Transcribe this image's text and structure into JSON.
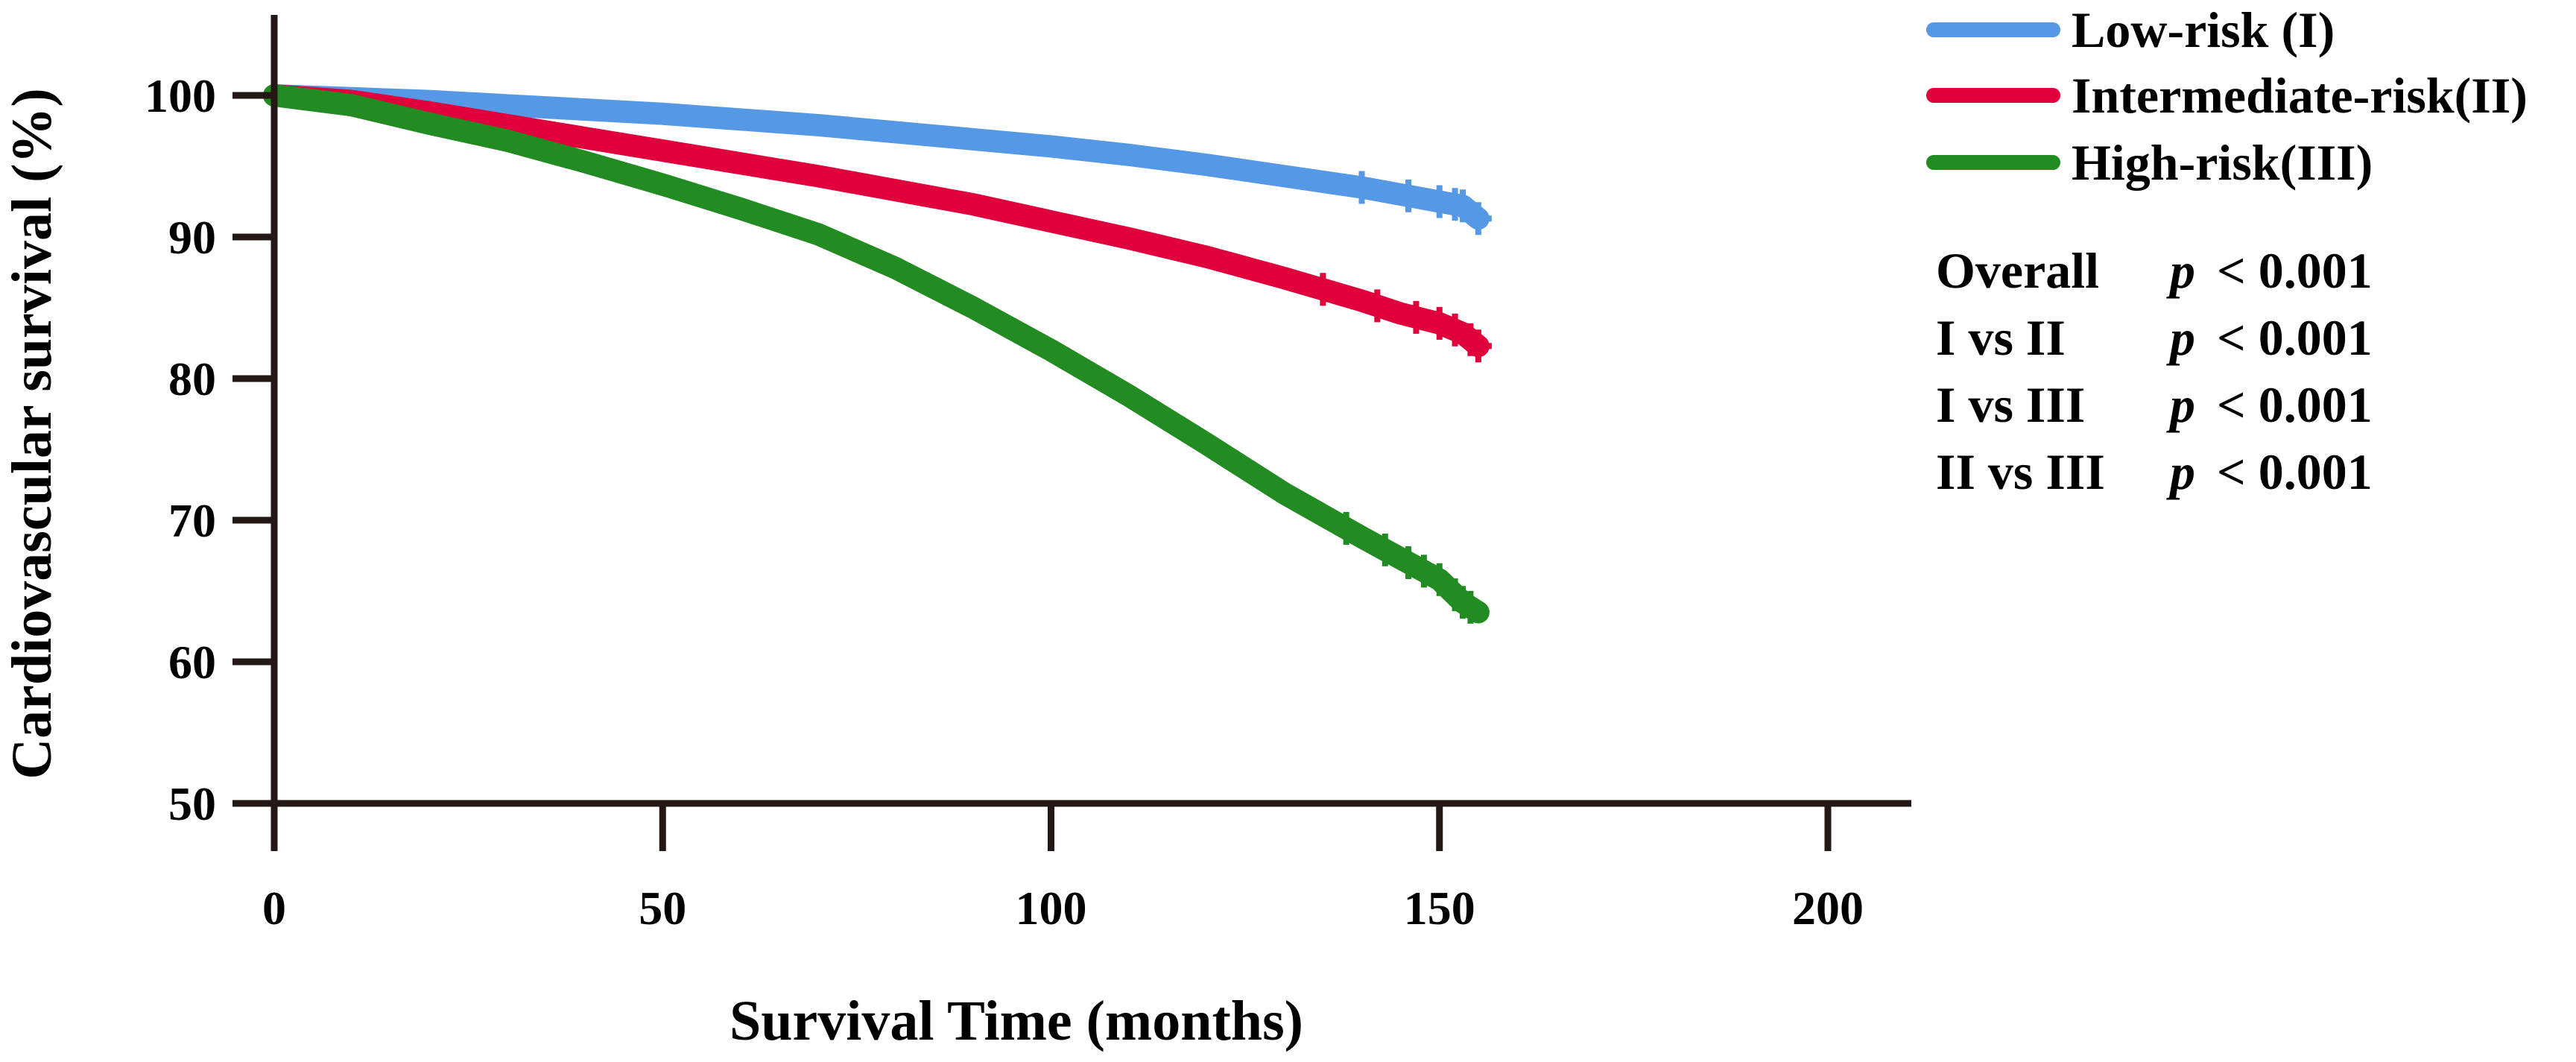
{
  "chart_data": {
    "type": "line",
    "xlabel": "Survival Time (months)",
    "ylabel": "Cardiovascular survival (%)",
    "xlim": [
      0,
      200
    ],
    "ylim": [
      50,
      100
    ],
    "x_ticks": [
      "0",
      "50",
      "100",
      "150",
      "200"
    ],
    "y_ticks": [
      "100",
      "90",
      "80",
      "70",
      "60",
      "50"
    ],
    "grid": false,
    "legend_position": "top-right",
    "series": [
      {
        "name": "Low-risk (I)",
        "color": "#5599E6",
        "x": [
          0,
          10,
          20,
          30,
          40,
          50,
          60,
          70,
          80,
          90,
          100,
          110,
          120,
          130,
          140,
          145,
          150,
          153,
          155
        ],
        "values": [
          100,
          99.8,
          99.6,
          99.3,
          99.0,
          98.7,
          98.3,
          97.9,
          97.4,
          96.9,
          96.4,
          95.8,
          95.1,
          94.3,
          93.5,
          93.0,
          92.5,
          92.2,
          91.3
        ],
        "censor_x": [
          140,
          146,
          150,
          152,
          153,
          155
        ]
      },
      {
        "name": "Intermediate-risk(II)",
        "color": "#E0003C",
        "x": [
          0,
          10,
          20,
          30,
          40,
          50,
          60,
          70,
          80,
          90,
          100,
          110,
          120,
          130,
          140,
          145,
          150,
          153,
          155
        ],
        "values": [
          100,
          99.6,
          98.8,
          97.9,
          97.0,
          96.1,
          95.2,
          94.3,
          93.3,
          92.3,
          91.1,
          89.9,
          88.6,
          87.1,
          85.5,
          84.6,
          83.9,
          83.2,
          82.3
        ],
        "censor_x": [
          135,
          142,
          147,
          150,
          152,
          154,
          155
        ]
      },
      {
        "name": "High-risk(III)",
        "color": "#228B22",
        "x": [
          0,
          10,
          20,
          30,
          40,
          50,
          60,
          70,
          80,
          90,
          100,
          110,
          120,
          130,
          140,
          145,
          150,
          153,
          155
        ],
        "values": [
          100,
          99.3,
          98.0,
          96.8,
          95.3,
          93.7,
          92.0,
          90.2,
          87.8,
          85.0,
          82.0,
          78.8,
          75.4,
          71.9,
          68.8,
          67.3,
          65.8,
          64.2,
          63.5
        ],
        "censor_x": [
          138,
          143,
          146,
          148,
          150,
          152,
          153,
          154
        ]
      }
    ],
    "annotations": [
      {
        "label": "Overall",
        "p": "p",
        "value": "< 0.001"
      },
      {
        "label": "I vs II",
        "p": "p",
        "value": "< 0.001"
      },
      {
        "label": "I vs III",
        "p": "p",
        "value": "< 0.001"
      },
      {
        "label": "II vs III",
        "p": "p",
        "value": "< 0.001"
      }
    ]
  }
}
